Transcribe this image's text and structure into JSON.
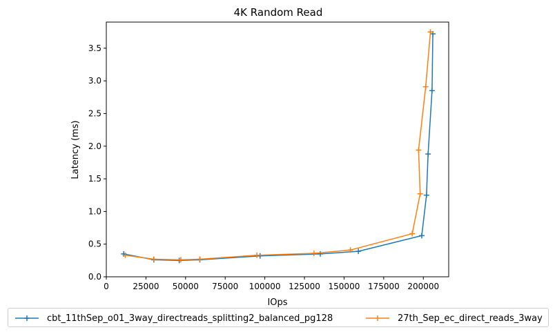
{
  "chart_data": {
    "type": "line",
    "title": "4K  Random Read",
    "xlabel": "IOps",
    "ylabel": "Latency (ms)",
    "xlim": [
      0,
      216000
    ],
    "ylim": [
      0,
      3.9
    ],
    "xticks": [
      0,
      25000,
      50000,
      75000,
      100000,
      125000,
      150000,
      175000,
      200000
    ],
    "yticks": [
      0.0,
      0.5,
      1.0,
      1.5,
      2.0,
      2.5,
      3.0,
      3.5
    ],
    "xtick_labels": [
      "0",
      "25000",
      "50000",
      "75000",
      "100000",
      "125000",
      "150000",
      "175000",
      "200000"
    ],
    "ytick_labels": [
      "0.0",
      "0.5",
      "1.0",
      "1.5",
      "2.0",
      "2.5",
      "3.0",
      "3.5"
    ],
    "marker": "+",
    "grid": false,
    "legend_position": "bottom",
    "series": [
      {
        "name": "cbt_11thSep_o01_3way_directreads_splitting2_balanced_pg128",
        "color": "#1f77b4",
        "x": [
          11000,
          30000,
          46000,
          59000,
          97000,
          135000,
          159000,
          199000,
          202000,
          203000,
          205500,
          206000
        ],
        "y": [
          0.35,
          0.26,
          0.25,
          0.26,
          0.32,
          0.35,
          0.39,
          0.63,
          1.25,
          1.88,
          2.85,
          3.72
        ]
      },
      {
        "name": "27th_Sep_ec_direct_reads_3way",
        "color": "#ff7f0e",
        "x": [
          12000,
          30000,
          47000,
          59000,
          95000,
          131000,
          154000,
          193000,
          198000,
          197000,
          201500,
          204500
        ],
        "y": [
          0.33,
          0.27,
          0.26,
          0.27,
          0.33,
          0.36,
          0.41,
          0.66,
          1.27,
          1.94,
          2.91,
          3.75
        ]
      }
    ]
  }
}
